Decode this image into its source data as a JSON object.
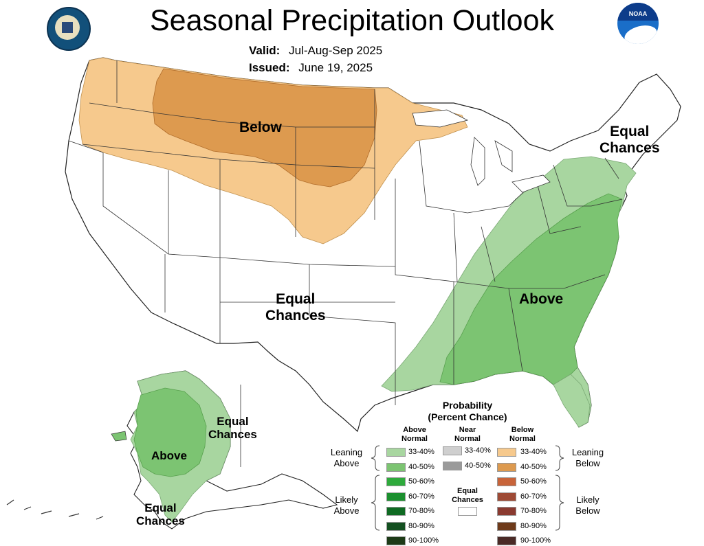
{
  "header": {
    "title": "Seasonal Precipitation Outlook",
    "valid_label": "Valid:",
    "valid_value": "Jul-Aug-Sep 2025",
    "issued_label": "Issued:",
    "issued_value": "June 19, 2025"
  },
  "map": {
    "region_labels": {
      "below": "Below",
      "above_east": "Above",
      "equal_northeast_1": "Equal",
      "equal_northeast_2": "Chances",
      "equal_southwest_1": "Equal",
      "equal_southwest_2": "Chances",
      "alaska_above": "Above",
      "alaska_equal_east_1": "Equal",
      "alaska_equal_east_2": "Chances",
      "alaska_equal_south_1": "Equal",
      "alaska_equal_south_2": "Chances"
    },
    "colors": {
      "above_33_40": "#a8d6a0",
      "above_40_50": "#7cc472",
      "below_33_40": "#f6c98d",
      "below_40_50": "#dd9a4f",
      "border": "#222222"
    }
  },
  "legend": {
    "title_line1": "Probability",
    "title_line2": "(Percent Chance)",
    "col_above_1": "Above",
    "col_above_2": "Normal",
    "col_near_1": "Near",
    "col_near_2": "Normal",
    "col_below_1": "Below",
    "col_below_2": "Normal",
    "leaning_above_1": "Leaning",
    "leaning_above_2": "Above",
    "likely_above_1": "Likely",
    "likely_above_2": "Above",
    "leaning_below_1": "Leaning",
    "leaning_below_2": "Below",
    "likely_below_1": "Likely",
    "likely_below_2": "Below",
    "equal_1": "Equal",
    "equal_2": "Chances",
    "above": [
      {
        "range": "33-40%",
        "color": "#a8d6a0"
      },
      {
        "range": "40-50%",
        "color": "#7cc472"
      },
      {
        "range": "50-60%",
        "color": "#2eaa3c"
      },
      {
        "range": "60-70%",
        "color": "#1b8f2e"
      },
      {
        "range": "70-80%",
        "color": "#0f6a22"
      },
      {
        "range": "80-90%",
        "color": "#145020"
      },
      {
        "range": "90-100%",
        "color": "#1d3a17"
      }
    ],
    "near": [
      {
        "range": "33-40%",
        "color": "#cfcfcf"
      },
      {
        "range": "40-50%",
        "color": "#9a9a9a"
      }
    ],
    "below": [
      {
        "range": "33-40%",
        "color": "#f6c98d"
      },
      {
        "range": "40-50%",
        "color": "#dd9a4f"
      },
      {
        "range": "50-60%",
        "color": "#c8643a"
      },
      {
        "range": "60-70%",
        "color": "#9e4a35"
      },
      {
        "range": "70-80%",
        "color": "#8a3a30"
      },
      {
        "range": "80-90%",
        "color": "#6e3a1a"
      },
      {
        "range": "90-100%",
        "color": "#4a2a26"
      }
    ],
    "equal_color": "#ffffff"
  }
}
